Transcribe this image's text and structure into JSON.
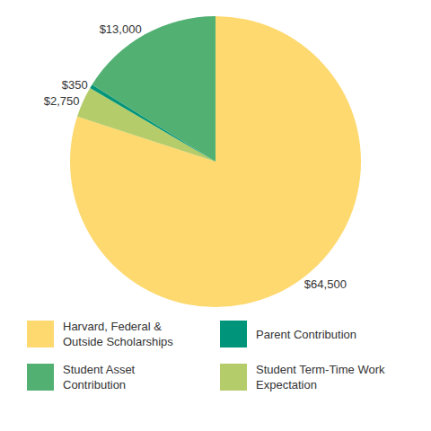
{
  "chart_data": {
    "type": "pie",
    "categories": [
      "Harvard, Federal & Outside Scholarships",
      "Student Term-Time Work Expectation",
      "Parent Contribution",
      "Student Asset Contribution"
    ],
    "values": [
      64500,
      2750,
      350,
      13000
    ],
    "value_labels": [
      "$64,500",
      "$2,750",
      "$350",
      "$13,000"
    ],
    "colors": [
      "#fdd96f",
      "#b4cc6a",
      "#00957a",
      "#52b073"
    ],
    "data_labels": true,
    "legend": "bottom"
  }
}
